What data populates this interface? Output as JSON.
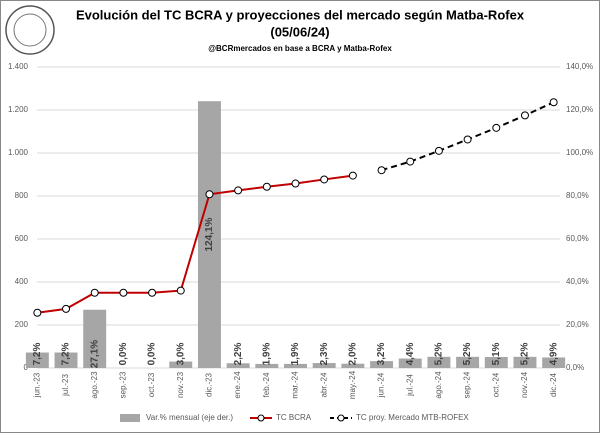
{
  "chart_data": {
    "type": "bar_line",
    "title": "Evolución del TC BCRA y proyecciones del mercado según Matba-Rofex",
    "title2": "(05/06/24)",
    "subtitle": "@BCRmercados en base a BCRA y Matba-Rofex",
    "categories": [
      "jun.-23",
      "jul.-23",
      "ago.-23",
      "sep.-23",
      "oct.-23",
      "nov.-23",
      "dic.-23",
      "ene.-24",
      "feb.-24",
      "mar.-24",
      "abr.-24",
      "may.-24",
      "jun.-24",
      "jul.-24",
      "ago.-24",
      "sep.-24",
      "oct.-24",
      "nov.-24",
      "dic.-24"
    ],
    "series": [
      {
        "name": "Var.% mensual (eje der.)",
        "color": "#a6a6a6",
        "axis": "y2",
        "kind": "bar",
        "values": [
          7.2,
          7.2,
          27.1,
          0.0,
          0.0,
          3.0,
          124.1,
          2.2,
          1.9,
          1.9,
          2.3,
          2.0,
          3.2,
          4.4,
          5.2,
          5.2,
          5.1,
          5.2,
          4.9
        ],
        "value_labels": [
          "7,2%",
          "7,2%",
          "27,1%",
          "0,0%",
          "0,0%",
          "3,0%",
          "124,1%",
          "2,2%",
          "1,9%",
          "1,9%",
          "2,3%",
          "2,0%",
          "3,2%",
          "4,4%",
          "5,2%",
          "5,2%",
          "5,1%",
          "5,2%",
          "4,9%"
        ]
      },
      {
        "name": "TC BCRA",
        "color": "#c00000",
        "kind": "line",
        "values": [
          257,
          275,
          350,
          350,
          350,
          360,
          808,
          826,
          843,
          858,
          877,
          895,
          null,
          null,
          null,
          null,
          null,
          null,
          null
        ]
      },
      {
        "name": "TC proy. Mercado MTB-ROFEX",
        "color": "#000000",
        "kind": "dashed",
        "values": [
          null,
          null,
          null,
          null,
          null,
          null,
          null,
          null,
          null,
          null,
          null,
          null,
          920,
          960,
          1010,
          1063,
          1117,
          1175,
          1236
        ]
      }
    ],
    "ylim": [
      0,
      1400
    ],
    "yticks": [
      0,
      200,
      400,
      600,
      800,
      {
        "value": 1000,
        "label": "1.000"
      },
      {
        "value": 1200,
        "label": "1.200"
      },
      {
        "value": 1400,
        "label": "1.400"
      }
    ],
    "y2lim": [
      0,
      140
    ],
    "y2ticks": [
      {
        "value": 0,
        "label": "0,0%"
      },
      {
        "value": 20,
        "label": "20,0%"
      },
      {
        "value": 40,
        "label": "40,0%"
      },
      {
        "value": 60,
        "label": "60,0%"
      },
      {
        "value": 80,
        "label": "80,0%"
      },
      {
        "value": 100,
        "label": "100,0%"
      },
      {
        "value": 120,
        "label": "120,0%"
      },
      {
        "value": 140,
        "label": "140,0%"
      }
    ],
    "grid": true,
    "legend": "bottom"
  }
}
